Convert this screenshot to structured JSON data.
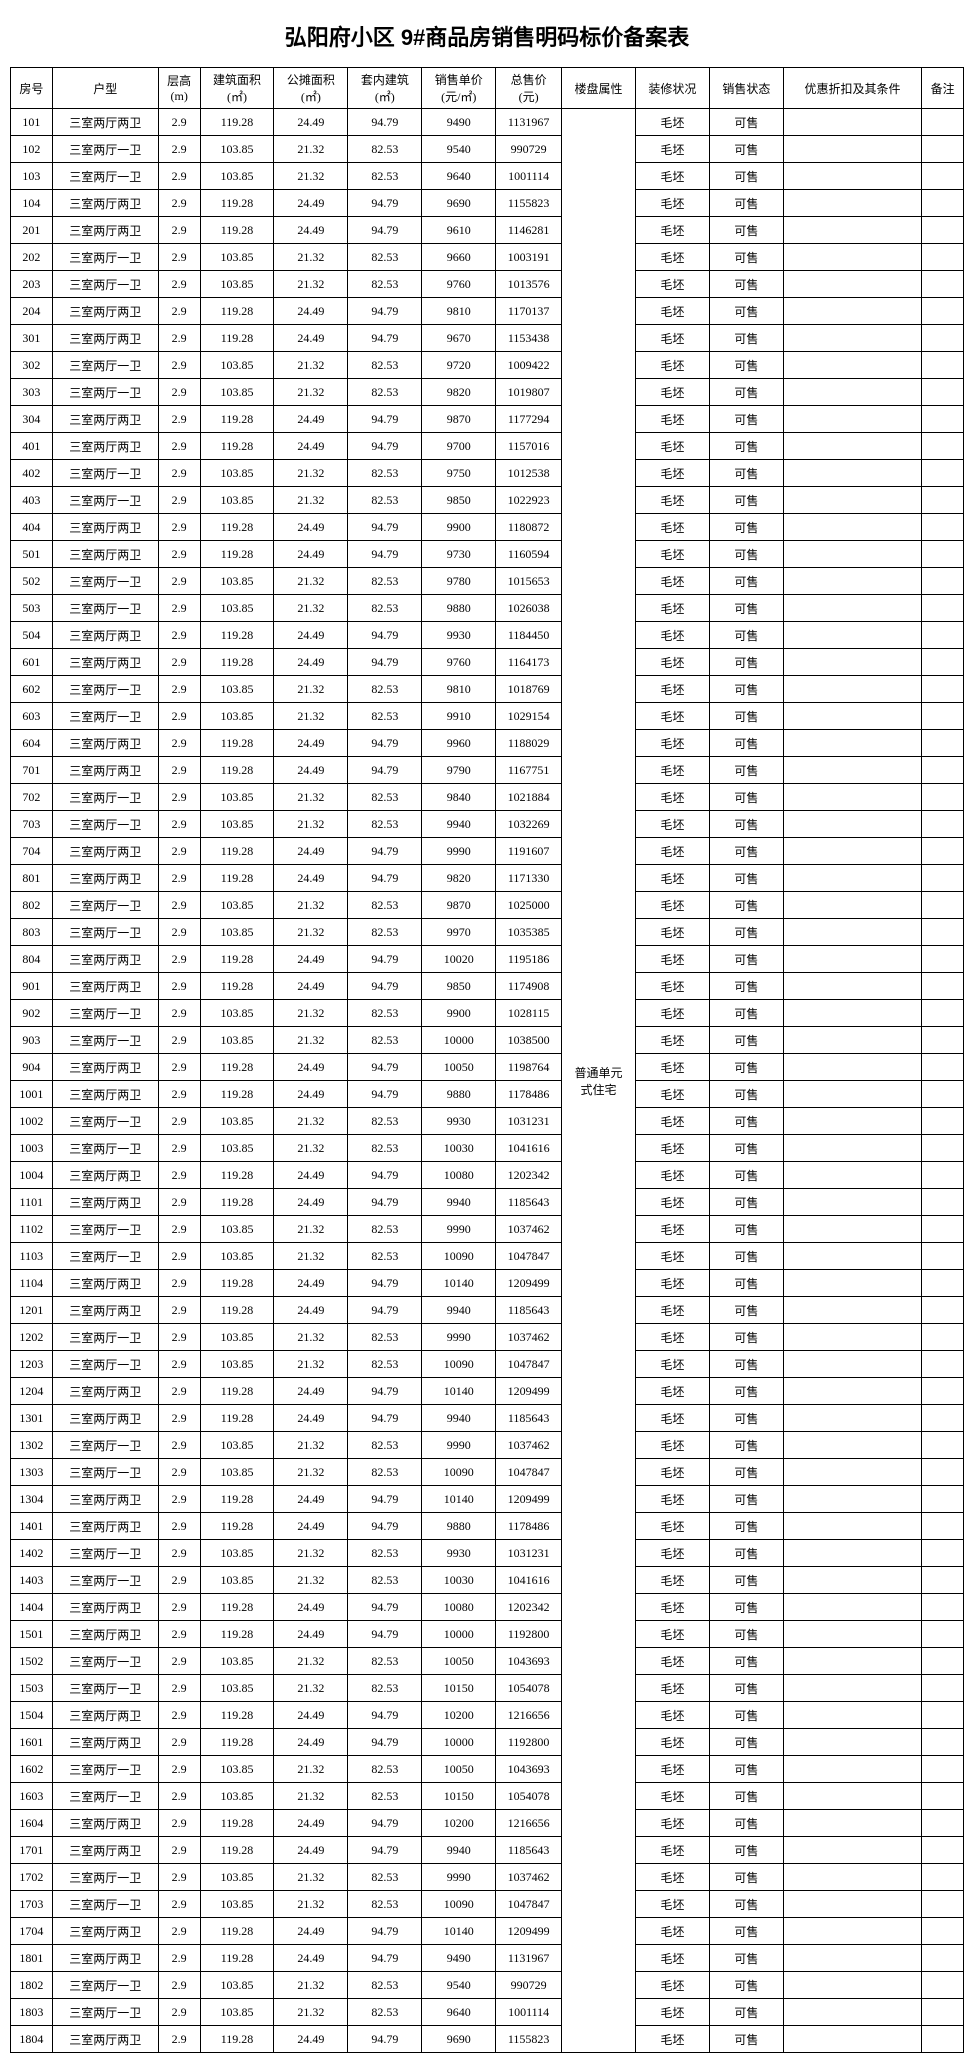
{
  "title": "弘阳府小区 9#商品房销售明码标价备案表",
  "headers": [
    "房号",
    "户型",
    "层高\n(m)",
    "建筑面积\n(㎡)",
    "公摊面积\n(㎡)",
    "套内建筑\n(㎡)",
    "销售单价\n(元/㎡)",
    "总售价\n(元)",
    "楼盘属性",
    "装修状况",
    "销售状态",
    "优惠折扣及其条件",
    "备注"
  ],
  "property_attr": "普通单元式住宅",
  "rows": [
    [
      "101",
      "三室两厅两卫",
      "2.9",
      "119.28",
      "24.49",
      "94.79",
      "9490",
      "1131967",
      "",
      "毛坯",
      "可售",
      "",
      ""
    ],
    [
      "102",
      "三室两厅一卫",
      "2.9",
      "103.85",
      "21.32",
      "82.53",
      "9540",
      "990729",
      "",
      "毛坯",
      "可售",
      "",
      ""
    ],
    [
      "103",
      "三室两厅一卫",
      "2.9",
      "103.85",
      "21.32",
      "82.53",
      "9640",
      "1001114",
      "",
      "毛坯",
      "可售",
      "",
      ""
    ],
    [
      "104",
      "三室两厅两卫",
      "2.9",
      "119.28",
      "24.49",
      "94.79",
      "9690",
      "1155823",
      "",
      "毛坯",
      "可售",
      "",
      ""
    ],
    [
      "201",
      "三室两厅两卫",
      "2.9",
      "119.28",
      "24.49",
      "94.79",
      "9610",
      "1146281",
      "",
      "毛坯",
      "可售",
      "",
      ""
    ],
    [
      "202",
      "三室两厅一卫",
      "2.9",
      "103.85",
      "21.32",
      "82.53",
      "9660",
      "1003191",
      "",
      "毛坯",
      "可售",
      "",
      ""
    ],
    [
      "203",
      "三室两厅一卫",
      "2.9",
      "103.85",
      "21.32",
      "82.53",
      "9760",
      "1013576",
      "",
      "毛坯",
      "可售",
      "",
      ""
    ],
    [
      "204",
      "三室两厅两卫",
      "2.9",
      "119.28",
      "24.49",
      "94.79",
      "9810",
      "1170137",
      "",
      "毛坯",
      "可售",
      "",
      ""
    ],
    [
      "301",
      "三室两厅两卫",
      "2.9",
      "119.28",
      "24.49",
      "94.79",
      "9670",
      "1153438",
      "",
      "毛坯",
      "可售",
      "",
      ""
    ],
    [
      "302",
      "三室两厅一卫",
      "2.9",
      "103.85",
      "21.32",
      "82.53",
      "9720",
      "1009422",
      "",
      "毛坯",
      "可售",
      "",
      ""
    ],
    [
      "303",
      "三室两厅一卫",
      "2.9",
      "103.85",
      "21.32",
      "82.53",
      "9820",
      "1019807",
      "",
      "毛坯",
      "可售",
      "",
      ""
    ],
    [
      "304",
      "三室两厅两卫",
      "2.9",
      "119.28",
      "24.49",
      "94.79",
      "9870",
      "1177294",
      "",
      "毛坯",
      "可售",
      "",
      ""
    ],
    [
      "401",
      "三室两厅两卫",
      "2.9",
      "119.28",
      "24.49",
      "94.79",
      "9700",
      "1157016",
      "",
      "毛坯",
      "可售",
      "",
      ""
    ],
    [
      "402",
      "三室两厅一卫",
      "2.9",
      "103.85",
      "21.32",
      "82.53",
      "9750",
      "1012538",
      "",
      "毛坯",
      "可售",
      "",
      ""
    ],
    [
      "403",
      "三室两厅一卫",
      "2.9",
      "103.85",
      "21.32",
      "82.53",
      "9850",
      "1022923",
      "",
      "毛坯",
      "可售",
      "",
      ""
    ],
    [
      "404",
      "三室两厅两卫",
      "2.9",
      "119.28",
      "24.49",
      "94.79",
      "9900",
      "1180872",
      "",
      "毛坯",
      "可售",
      "",
      ""
    ],
    [
      "501",
      "三室两厅两卫",
      "2.9",
      "119.28",
      "24.49",
      "94.79",
      "9730",
      "1160594",
      "",
      "毛坯",
      "可售",
      "",
      ""
    ],
    [
      "502",
      "三室两厅一卫",
      "2.9",
      "103.85",
      "21.32",
      "82.53",
      "9780",
      "1015653",
      "",
      "毛坯",
      "可售",
      "",
      ""
    ],
    [
      "503",
      "三室两厅一卫",
      "2.9",
      "103.85",
      "21.32",
      "82.53",
      "9880",
      "1026038",
      "",
      "毛坯",
      "可售",
      "",
      ""
    ],
    [
      "504",
      "三室两厅两卫",
      "2.9",
      "119.28",
      "24.49",
      "94.79",
      "9930",
      "1184450",
      "",
      "毛坯",
      "可售",
      "",
      ""
    ],
    [
      "601",
      "三室两厅两卫",
      "2.9",
      "119.28",
      "24.49",
      "94.79",
      "9760",
      "1164173",
      "",
      "毛坯",
      "可售",
      "",
      ""
    ],
    [
      "602",
      "三室两厅一卫",
      "2.9",
      "103.85",
      "21.32",
      "82.53",
      "9810",
      "1018769",
      "",
      "毛坯",
      "可售",
      "",
      ""
    ],
    [
      "603",
      "三室两厅一卫",
      "2.9",
      "103.85",
      "21.32",
      "82.53",
      "9910",
      "1029154",
      "",
      "毛坯",
      "可售",
      "",
      ""
    ],
    [
      "604",
      "三室两厅两卫",
      "2.9",
      "119.28",
      "24.49",
      "94.79",
      "9960",
      "1188029",
      "",
      "毛坯",
      "可售",
      "",
      ""
    ],
    [
      "701",
      "三室两厅两卫",
      "2.9",
      "119.28",
      "24.49",
      "94.79",
      "9790",
      "1167751",
      "",
      "毛坯",
      "可售",
      "",
      ""
    ],
    [
      "702",
      "三室两厅一卫",
      "2.9",
      "103.85",
      "21.32",
      "82.53",
      "9840",
      "1021884",
      "",
      "毛坯",
      "可售",
      "",
      ""
    ],
    [
      "703",
      "三室两厅一卫",
      "2.9",
      "103.85",
      "21.32",
      "82.53",
      "9940",
      "1032269",
      "",
      "毛坯",
      "可售",
      "",
      ""
    ],
    [
      "704",
      "三室两厅两卫",
      "2.9",
      "119.28",
      "24.49",
      "94.79",
      "9990",
      "1191607",
      "",
      "毛坯",
      "可售",
      "",
      ""
    ],
    [
      "801",
      "三室两厅两卫",
      "2.9",
      "119.28",
      "24.49",
      "94.79",
      "9820",
      "1171330",
      "",
      "毛坯",
      "可售",
      "",
      ""
    ],
    [
      "802",
      "三室两厅一卫",
      "2.9",
      "103.85",
      "21.32",
      "82.53",
      "9870",
      "1025000",
      "",
      "毛坯",
      "可售",
      "",
      ""
    ],
    [
      "803",
      "三室两厅一卫",
      "2.9",
      "103.85",
      "21.32",
      "82.53",
      "9970",
      "1035385",
      "",
      "毛坯",
      "可售",
      "",
      ""
    ],
    [
      "804",
      "三室两厅两卫",
      "2.9",
      "119.28",
      "24.49",
      "94.79",
      "10020",
      "1195186",
      "",
      "毛坯",
      "可售",
      "",
      ""
    ],
    [
      "901",
      "三室两厅两卫",
      "2.9",
      "119.28",
      "24.49",
      "94.79",
      "9850",
      "1174908",
      "",
      "毛坯",
      "可售",
      "",
      ""
    ],
    [
      "902",
      "三室两厅一卫",
      "2.9",
      "103.85",
      "21.32",
      "82.53",
      "9900",
      "1028115",
      "",
      "毛坯",
      "可售",
      "",
      ""
    ],
    [
      "903",
      "三室两厅一卫",
      "2.9",
      "103.85",
      "21.32",
      "82.53",
      "10000",
      "1038500",
      "",
      "毛坯",
      "可售",
      "",
      ""
    ],
    [
      "904",
      "三室两厅两卫",
      "2.9",
      "119.28",
      "24.49",
      "94.79",
      "10050",
      "1198764",
      "",
      "毛坯",
      "可售",
      "",
      ""
    ],
    [
      "1001",
      "三室两厅两卫",
      "2.9",
      "119.28",
      "24.49",
      "94.79",
      "9880",
      "1178486",
      "",
      "毛坯",
      "可售",
      "",
      ""
    ],
    [
      "1002",
      "三室两厅一卫",
      "2.9",
      "103.85",
      "21.32",
      "82.53",
      "9930",
      "1031231",
      "",
      "毛坯",
      "可售",
      "",
      ""
    ],
    [
      "1003",
      "三室两厅一卫",
      "2.9",
      "103.85",
      "21.32",
      "82.53",
      "10030",
      "1041616",
      "",
      "毛坯",
      "可售",
      "",
      ""
    ],
    [
      "1004",
      "三室两厅两卫",
      "2.9",
      "119.28",
      "24.49",
      "94.79",
      "10080",
      "1202342",
      "",
      "毛坯",
      "可售",
      "",
      ""
    ],
    [
      "1101",
      "三室两厅两卫",
      "2.9",
      "119.28",
      "24.49",
      "94.79",
      "9940",
      "1185643",
      "",
      "毛坯",
      "可售",
      "",
      ""
    ],
    [
      "1102",
      "三室两厅一卫",
      "2.9",
      "103.85",
      "21.32",
      "82.53",
      "9990",
      "1037462",
      "",
      "毛坯",
      "可售",
      "",
      ""
    ],
    [
      "1103",
      "三室两厅一卫",
      "2.9",
      "103.85",
      "21.32",
      "82.53",
      "10090",
      "1047847",
      "",
      "毛坯",
      "可售",
      "",
      ""
    ],
    [
      "1104",
      "三室两厅两卫",
      "2.9",
      "119.28",
      "24.49",
      "94.79",
      "10140",
      "1209499",
      "",
      "毛坯",
      "可售",
      "",
      ""
    ],
    [
      "1201",
      "三室两厅两卫",
      "2.9",
      "119.28",
      "24.49",
      "94.79",
      "9940",
      "1185643",
      "",
      "毛坯",
      "可售",
      "",
      ""
    ],
    [
      "1202",
      "三室两厅一卫",
      "2.9",
      "103.85",
      "21.32",
      "82.53",
      "9990",
      "1037462",
      "",
      "毛坯",
      "可售",
      "",
      ""
    ],
    [
      "1203",
      "三室两厅一卫",
      "2.9",
      "103.85",
      "21.32",
      "82.53",
      "10090",
      "1047847",
      "",
      "毛坯",
      "可售",
      "",
      ""
    ],
    [
      "1204",
      "三室两厅两卫",
      "2.9",
      "119.28",
      "24.49",
      "94.79",
      "10140",
      "1209499",
      "",
      "毛坯",
      "可售",
      "",
      ""
    ],
    [
      "1301",
      "三室两厅两卫",
      "2.9",
      "119.28",
      "24.49",
      "94.79",
      "9940",
      "1185643",
      "",
      "毛坯",
      "可售",
      "",
      ""
    ],
    [
      "1302",
      "三室两厅一卫",
      "2.9",
      "103.85",
      "21.32",
      "82.53",
      "9990",
      "1037462",
      "",
      "毛坯",
      "可售",
      "",
      ""
    ],
    [
      "1303",
      "三室两厅一卫",
      "2.9",
      "103.85",
      "21.32",
      "82.53",
      "10090",
      "1047847",
      "",
      "毛坯",
      "可售",
      "",
      ""
    ],
    [
      "1304",
      "三室两厅两卫",
      "2.9",
      "119.28",
      "24.49",
      "94.79",
      "10140",
      "1209499",
      "",
      "毛坯",
      "可售",
      "",
      ""
    ],
    [
      "1401",
      "三室两厅两卫",
      "2.9",
      "119.28",
      "24.49",
      "94.79",
      "9880",
      "1178486",
      "",
      "毛坯",
      "可售",
      "",
      ""
    ],
    [
      "1402",
      "三室两厅一卫",
      "2.9",
      "103.85",
      "21.32",
      "82.53",
      "9930",
      "1031231",
      "",
      "毛坯",
      "可售",
      "",
      ""
    ],
    [
      "1403",
      "三室两厅一卫",
      "2.9",
      "103.85",
      "21.32",
      "82.53",
      "10030",
      "1041616",
      "",
      "毛坯",
      "可售",
      "",
      ""
    ],
    [
      "1404",
      "三室两厅两卫",
      "2.9",
      "119.28",
      "24.49",
      "94.79",
      "10080",
      "1202342",
      "",
      "毛坯",
      "可售",
      "",
      ""
    ],
    [
      "1501",
      "三室两厅两卫",
      "2.9",
      "119.28",
      "24.49",
      "94.79",
      "10000",
      "1192800",
      "",
      "毛坯",
      "可售",
      "",
      ""
    ],
    [
      "1502",
      "三室两厅一卫",
      "2.9",
      "103.85",
      "21.32",
      "82.53",
      "10050",
      "1043693",
      "",
      "毛坯",
      "可售",
      "",
      ""
    ],
    [
      "1503",
      "三室两厅一卫",
      "2.9",
      "103.85",
      "21.32",
      "82.53",
      "10150",
      "1054078",
      "",
      "毛坯",
      "可售",
      "",
      ""
    ],
    [
      "1504",
      "三室两厅两卫",
      "2.9",
      "119.28",
      "24.49",
      "94.79",
      "10200",
      "1216656",
      "",
      "毛坯",
      "可售",
      "",
      ""
    ],
    [
      "1601",
      "三室两厅两卫",
      "2.9",
      "119.28",
      "24.49",
      "94.79",
      "10000",
      "1192800",
      "",
      "毛坯",
      "可售",
      "",
      ""
    ],
    [
      "1602",
      "三室两厅一卫",
      "2.9",
      "103.85",
      "21.32",
      "82.53",
      "10050",
      "1043693",
      "",
      "毛坯",
      "可售",
      "",
      ""
    ],
    [
      "1603",
      "三室两厅一卫",
      "2.9",
      "103.85",
      "21.32",
      "82.53",
      "10150",
      "1054078",
      "",
      "毛坯",
      "可售",
      "",
      ""
    ],
    [
      "1604",
      "三室两厅两卫",
      "2.9",
      "119.28",
      "24.49",
      "94.79",
      "10200",
      "1216656",
      "",
      "毛坯",
      "可售",
      "",
      ""
    ],
    [
      "1701",
      "三室两厅两卫",
      "2.9",
      "119.28",
      "24.49",
      "94.79",
      "9940",
      "1185643",
      "",
      "毛坯",
      "可售",
      "",
      ""
    ],
    [
      "1702",
      "三室两厅一卫",
      "2.9",
      "103.85",
      "21.32",
      "82.53",
      "9990",
      "1037462",
      "",
      "毛坯",
      "可售",
      "",
      ""
    ],
    [
      "1703",
      "三室两厅一卫",
      "2.9",
      "103.85",
      "21.32",
      "82.53",
      "10090",
      "1047847",
      "",
      "毛坯",
      "可售",
      "",
      ""
    ],
    [
      "1704",
      "三室两厅两卫",
      "2.9",
      "119.28",
      "24.49",
      "94.79",
      "10140",
      "1209499",
      "",
      "毛坯",
      "可售",
      "",
      ""
    ],
    [
      "1801",
      "三室两厅两卫",
      "2.9",
      "119.28",
      "24.49",
      "94.79",
      "9490",
      "1131967",
      "",
      "毛坯",
      "可售",
      "",
      ""
    ],
    [
      "1802",
      "三室两厅一卫",
      "2.9",
      "103.85",
      "21.32",
      "82.53",
      "9540",
      "990729",
      "",
      "毛坯",
      "可售",
      "",
      ""
    ],
    [
      "1803",
      "三室两厅一卫",
      "2.9",
      "103.85",
      "21.32",
      "82.53",
      "9640",
      "1001114",
      "",
      "毛坯",
      "可售",
      "",
      ""
    ],
    [
      "1804",
      "三室两厅两卫",
      "2.9",
      "119.28",
      "24.49",
      "94.79",
      "9690",
      "1155823",
      "",
      "毛坯",
      "可售",
      "",
      ""
    ]
  ]
}
